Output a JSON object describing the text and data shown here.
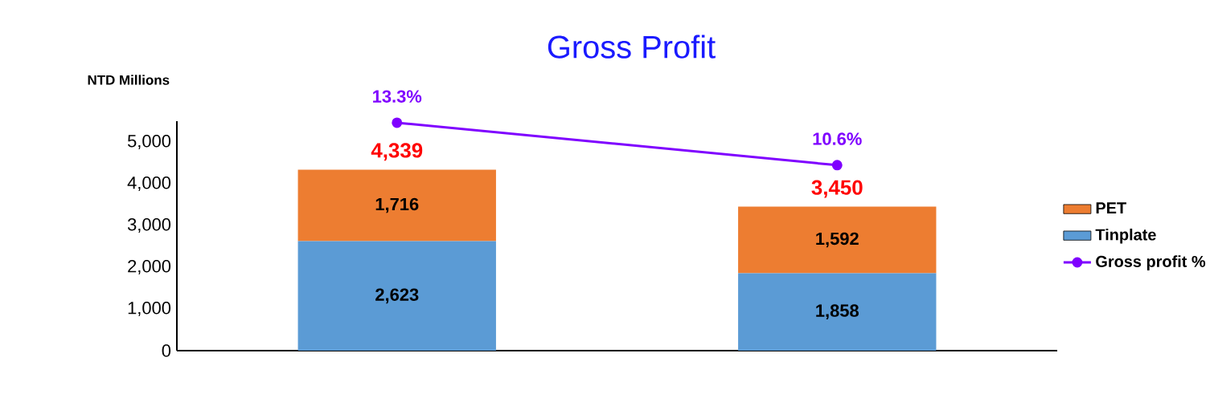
{
  "chart_data": {
    "type": "bar",
    "title": "Gross Profit",
    "ylabel": "NTD Millions",
    "categories": [
      null,
      null
    ],
    "stacked": true,
    "ylim": [
      0,
      5500
    ],
    "yticks": [
      0,
      {
        "value": 1000,
        "label": "1,000"
      },
      {
        "value": 2000,
        "label": "2,000"
      },
      {
        "value": 3000,
        "label": "3,000"
      },
      {
        "value": 4000,
        "label": "4,000"
      },
      {
        "value": 5000,
        "label": "5,000"
      }
    ],
    "y2lim": [
      -1.2,
      13.4
    ],
    "series": [
      {
        "name": "Tinplate",
        "color": "#5b9bd5",
        "values": [
          2623,
          1858
        ],
        "value_labels": [
          "2,623",
          "1,858"
        ]
      },
      {
        "name": "PET",
        "color": "#ed7d31",
        "values": [
          1716,
          1592
        ],
        "value_labels": [
          "1,716",
          "1,592"
        ]
      },
      {
        "name": "Gross profit %",
        "type": "line",
        "axis": "y2",
        "marker": "circle",
        "color": "#7f00ff",
        "values": [
          13.3,
          10.6
        ],
        "value_labels": [
          "13.3%",
          "10.6%"
        ]
      }
    ],
    "totals": [
      "4,339",
      "3,450"
    ],
    "legend": "right",
    "tick_labels": "y"
  }
}
